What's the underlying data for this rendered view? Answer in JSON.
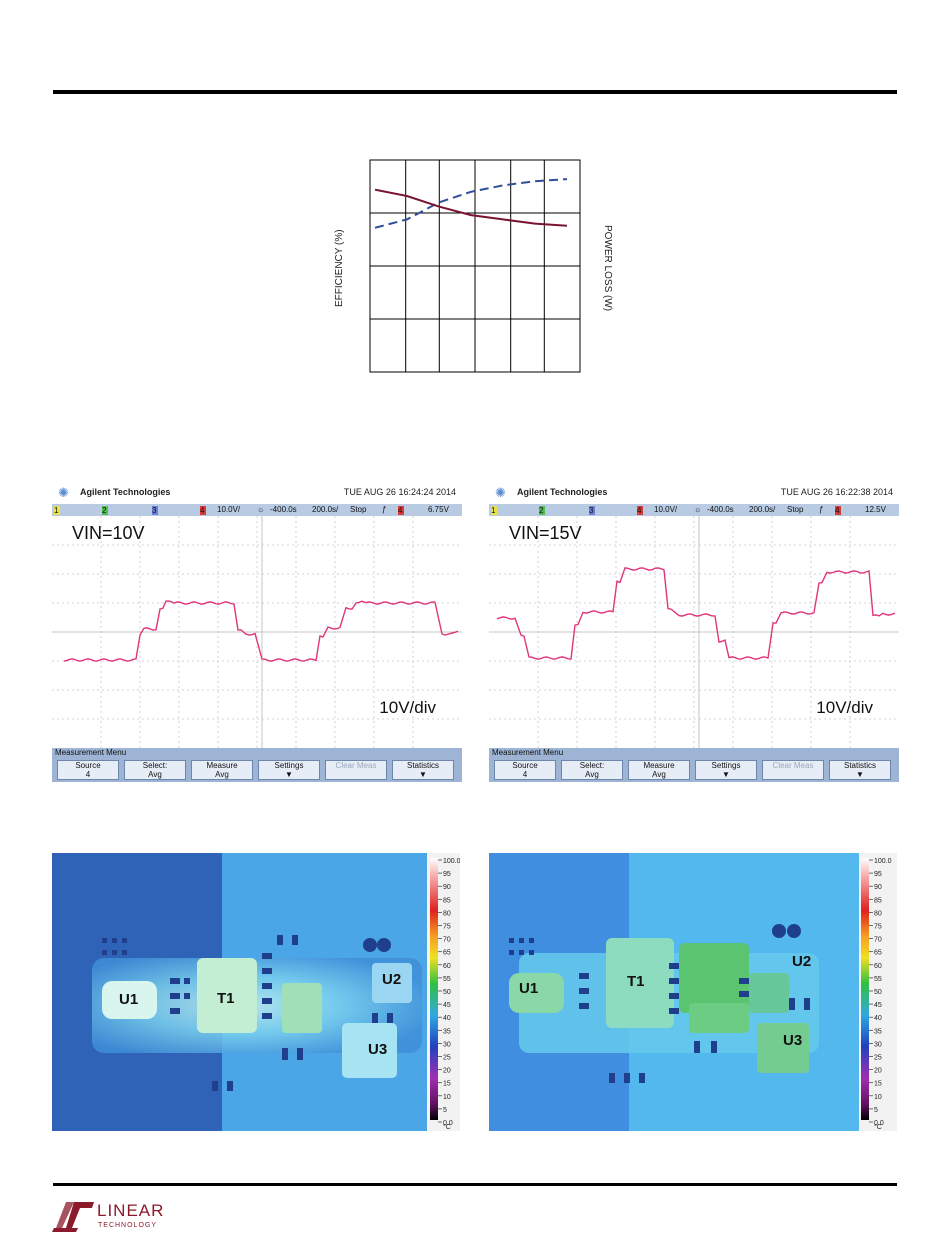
{
  "chart_data": {
    "type": "line",
    "title": "",
    "xlabel": "",
    "ylabel": "EFFICIENCY (%)",
    "y2label": "POWER LOSS (W)",
    "grid": true,
    "x": [
      0,
      1,
      2,
      3,
      4,
      5,
      6
    ],
    "series": [
      {
        "values": [
          68,
          72,
          80,
          85,
          88,
          90,
          91
        ],
        "style": "dashed",
        "color": "#2f4f9a"
      },
      {
        "values": [
          86,
          83,
          78,
          74,
          72,
          70,
          69
        ],
        "style": "solid",
        "color": "#7a1430"
      }
    ],
    "xlim": [
      0,
      6
    ],
    "ylim": [
      0,
      100
    ]
  },
  "scopes": [
    {
      "brand": "Agilent Technologies",
      "timestamp": "TUE AUG 26 16:24:24 2014",
      "ch1": "1",
      "ch2": "2",
      "ch3": "3",
      "ch4": "4",
      "volts": "10.0V/",
      "offset": "-400.0s",
      "timebase": "200.0s/",
      "mode": "Stop",
      "trig": "4",
      "level": "6.75V",
      "vin": "VIN=10V",
      "div": "10V/div",
      "menu_title": "Measurement Menu",
      "buttons": [
        {
          "l1": "Source",
          "l2": "4"
        },
        {
          "l1": "Select:",
          "l2": "Avg"
        },
        {
          "l1": "Measure",
          "l2": "Avg"
        },
        {
          "l1": "Settings",
          "l2": "▼"
        },
        {
          "l1": "Clear Meas",
          "l2": ""
        },
        {
          "l1": "Statistics",
          "l2": "▼"
        }
      ]
    },
    {
      "brand": "Agilent Technologies",
      "timestamp": "TUE AUG 26 16:22:38 2014",
      "ch1": "1",
      "ch2": "2",
      "ch3": "3",
      "ch4": "4",
      "volts": "10.0V/",
      "offset": "-400.0s",
      "timebase": "200.0s/",
      "mode": "Stop",
      "trig": "4",
      "level": "12.5V",
      "vin": "VIN=15V",
      "div": "10V/div",
      "menu_title": "Measurement Menu",
      "buttons": [
        {
          "l1": "Source",
          "l2": "4"
        },
        {
          "l1": "Select:",
          "l2": "Avg"
        },
        {
          "l1": "Measure",
          "l2": "Avg"
        },
        {
          "l1": "Settings",
          "l2": "▼"
        },
        {
          "l1": "Clear Meas",
          "l2": ""
        },
        {
          "l1": "Statistics",
          "l2": "▼"
        }
      ]
    }
  ],
  "thermals": [
    {
      "labels": [
        "U1",
        "T1",
        "U2",
        "U3"
      ]
    },
    {
      "labels": [
        "U1",
        "T1",
        "U2",
        "U3"
      ]
    }
  ],
  "scale_ticks": [
    "100.0",
    "95",
    "90",
    "85",
    "80",
    "75",
    "70",
    "65",
    "60",
    "55",
    "50",
    "45",
    "40",
    "35",
    "30",
    "25",
    "20",
    "15",
    "10",
    "5",
    "0.0",
    "°C"
  ],
  "footer": {
    "logo_text": "LINEAR",
    "logo_sub": "TECHNOLOGY"
  }
}
